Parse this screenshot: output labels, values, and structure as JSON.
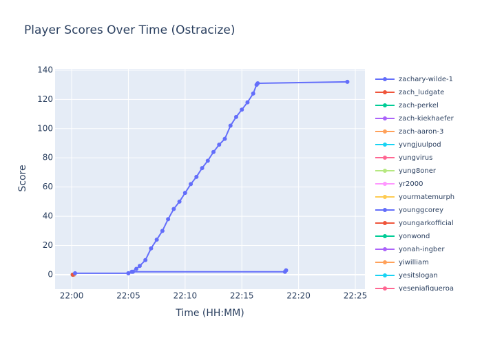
{
  "chart_data": {
    "type": "line",
    "title": "Player Scores Over Time (Ostracize)",
    "x_label": "Time (HH:MM)",
    "y_label": "Score",
    "xlim": [
      1318.54,
      1345.85
    ],
    "ylim": [
      -9.9,
      140.9
    ],
    "xticks": [
      {
        "value": 1320,
        "label": "22:00"
      },
      {
        "value": 1325,
        "label": "22:05"
      },
      {
        "value": 1330,
        "label": "22:10"
      },
      {
        "value": 1335,
        "label": "22:15"
      },
      {
        "value": 1340,
        "label": "22:20"
      },
      {
        "value": 1345,
        "label": "22:25"
      }
    ],
    "yticks": [
      0,
      20,
      40,
      60,
      80,
      100,
      120,
      140
    ],
    "grid": true,
    "legend": "right",
    "series": [
      {
        "name": "zachary-wilde-1",
        "color": "#636efa",
        "x": [
          1320.3,
          1325,
          1325.3,
          1325.7,
          1326,
          1326.5,
          1327,
          1327.5,
          1328,
          1328.5,
          1329,
          1329.5,
          1330,
          1330.5,
          1331,
          1331.5,
          1332,
          1332.5,
          1333,
          1333.5,
          1334,
          1334.5,
          1335,
          1335.5,
          1336,
          1336.3,
          1336.4,
          1344.3
        ],
        "values": [
          1,
          1,
          2,
          4,
          6,
          10,
          18,
          24,
          30,
          38,
          45,
          50,
          56,
          62,
          67,
          73,
          78,
          84,
          89,
          93,
          102,
          108,
          113,
          118,
          124,
          130,
          131,
          132
        ]
      },
      {
        "name": "zach_ludgate",
        "color": "#EF553B",
        "x": [
          1320.1
        ],
        "values": [
          0
        ]
      },
      {
        "name": "zach-perkel",
        "color": "#00cc96",
        "x": [
          1320.1
        ],
        "values": [
          0
        ]
      },
      {
        "name": "zach-kiekhaefer",
        "color": "#ab63fa",
        "x": [
          1320.1
        ],
        "values": [
          0
        ]
      },
      {
        "name": "zach-aaron-3",
        "color": "#FFA15A",
        "x": [
          1320.1
        ],
        "values": [
          0
        ]
      },
      {
        "name": "yvngjuulpod",
        "color": "#19d3f3",
        "x": [
          1320.1
        ],
        "values": [
          0
        ]
      },
      {
        "name": "yungvirus",
        "color": "#FF6692",
        "x": [
          1320.1
        ],
        "values": [
          0
        ]
      },
      {
        "name": "yung8oner",
        "color": "#B6E880",
        "x": [
          1320.1
        ],
        "values": [
          0
        ]
      },
      {
        "name": "yr2000",
        "color": "#FF97FF",
        "x": [
          1320.1
        ],
        "values": [
          0
        ]
      },
      {
        "name": "yourmatemurph",
        "color": "#FECB52",
        "x": [
          1320.1
        ],
        "values": [
          0
        ]
      },
      {
        "name": "younggcorey",
        "color": "#636efa",
        "x": [
          1325,
          1325.4,
          1338.8,
          1338.9
        ],
        "values": [
          1,
          2,
          2,
          3
        ]
      },
      {
        "name": "youngarkofficial",
        "color": "#EF553B",
        "x": [
          1320.1
        ],
        "values": [
          0
        ]
      },
      {
        "name": "yonwond",
        "color": "#00cc96",
        "x": [
          1320.1
        ],
        "values": [
          0
        ]
      },
      {
        "name": "yonah-ingber",
        "color": "#ab63fa",
        "x": [
          1320.1
        ],
        "values": [
          0
        ]
      },
      {
        "name": "yiwilliam",
        "color": "#FFA15A",
        "x": [
          1320.2
        ],
        "values": [
          0
        ]
      },
      {
        "name": "yesitslogan",
        "color": "#19d3f3",
        "x": [
          1320.1
        ],
        "values": [
          0
        ]
      },
      {
        "name": "yeseniafigueroa",
        "color": "#FF6692",
        "x": [
          1320.1
        ],
        "values": [
          0
        ]
      }
    ]
  }
}
